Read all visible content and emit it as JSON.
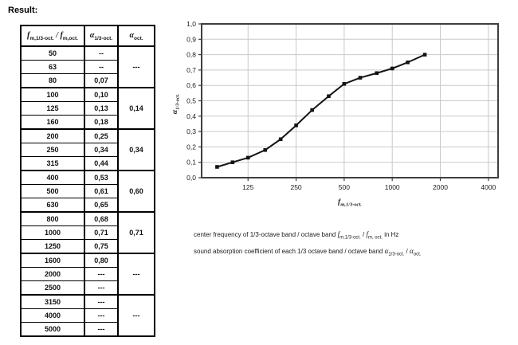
{
  "result_label": "Result:",
  "table": {
    "col1_header": {
      "sym1": "f",
      "sub1": "m,1/3-oct.",
      "sep": " / ",
      "sym2": "f",
      "sub2": "m,oct."
    },
    "col2_header": {
      "sym": "α",
      "sub": "1/3-oct."
    },
    "col3_header": {
      "sym": "α",
      "sub": "oct."
    },
    "rows": [
      {
        "freq": "50",
        "alpha_third": "--"
      },
      {
        "freq": "63",
        "alpha_third": "--"
      },
      {
        "freq": "80",
        "alpha_third": "0,07"
      },
      {
        "freq": "100",
        "alpha_third": "0,10"
      },
      {
        "freq": "125",
        "alpha_third": "0,13"
      },
      {
        "freq": "160",
        "alpha_third": "0,18"
      },
      {
        "freq": "200",
        "alpha_third": "0,25"
      },
      {
        "freq": "250",
        "alpha_third": "0,34"
      },
      {
        "freq": "315",
        "alpha_third": "0,44"
      },
      {
        "freq": "400",
        "alpha_third": "0,53"
      },
      {
        "freq": "500",
        "alpha_third": "0,61"
      },
      {
        "freq": "630",
        "alpha_third": "0,65"
      },
      {
        "freq": "800",
        "alpha_third": "0,68"
      },
      {
        "freq": "1000",
        "alpha_third": "0,71"
      },
      {
        "freq": "1250",
        "alpha_third": "0,75"
      },
      {
        "freq": "1600",
        "alpha_third": "0,80"
      },
      {
        "freq": "2000",
        "alpha_third": "---"
      },
      {
        "freq": "2500",
        "alpha_third": "---"
      },
      {
        "freq": "3150",
        "alpha_third": "---"
      },
      {
        "freq": "4000",
        "alpha_third": "---"
      },
      {
        "freq": "5000",
        "alpha_third": "---"
      }
    ],
    "octave_groups": [
      {
        "span": 3,
        "value": "---"
      },
      {
        "span": 3,
        "value": "0,14"
      },
      {
        "span": 3,
        "value": "0,34"
      },
      {
        "span": 3,
        "value": "0,60"
      },
      {
        "span": 3,
        "value": "0,71"
      },
      {
        "span": 3,
        "value": "---"
      },
      {
        "span": 3,
        "value": "---"
      }
    ]
  },
  "chart_data": {
    "type": "line",
    "title": "",
    "series": [
      {
        "name": "alpha 1/3-oct.",
        "x": [
          80,
          100,
          125,
          160,
          200,
          250,
          315,
          400,
          500,
          630,
          800,
          1000,
          1250,
          1600
        ],
        "y": [
          0.07,
          0.1,
          0.13,
          0.18,
          0.25,
          0.34,
          0.44,
          0.53,
          0.61,
          0.65,
          0.68,
          0.71,
          0.75,
          0.8
        ]
      }
    ],
    "x_scale": "log",
    "xlim": [
      64,
      4600
    ],
    "ylim": [
      0,
      1
    ],
    "x_ticks": [
      125,
      250,
      500,
      1000,
      2000,
      4000
    ],
    "y_ticks": [
      0,
      0.1,
      0.2,
      0.3,
      0.4,
      0.5,
      0.6,
      0.7,
      0.8,
      0.9,
      1.0
    ],
    "y_tick_labels": [
      "0,0",
      "0,1",
      "0,2",
      "0,3",
      "0,4",
      "0,5",
      "0,6",
      "0,7",
      "0,8",
      "0,9",
      "1,0"
    ],
    "xlabel_sym": "f",
    "xlabel_sub": "m,1/3-oct.",
    "ylabel_sym": "α",
    "ylabel_sub": "1/3-oct.",
    "grid": true,
    "grid_color": "#c9c9c9",
    "border_color": "#3f3f3f",
    "line_color": "#141414",
    "marker": "square",
    "legend": "none"
  },
  "caption": {
    "line1": {
      "text1": "center frequency of 1/3-octave band / octave band ",
      "sym1": "f",
      "sub1": "m,1/3-oct.",
      "mid": " / ",
      "sym2": "f",
      "sub2": "m, oct.",
      "text2": " in Hz"
    },
    "line2": {
      "text1": "sound absorption coefficient of each 1/3 octave band / octave band ",
      "sym1": "α",
      "sub1": "1/3-oct.",
      "mid": " / ",
      "sym2": "α",
      "sub2": "oct."
    }
  }
}
